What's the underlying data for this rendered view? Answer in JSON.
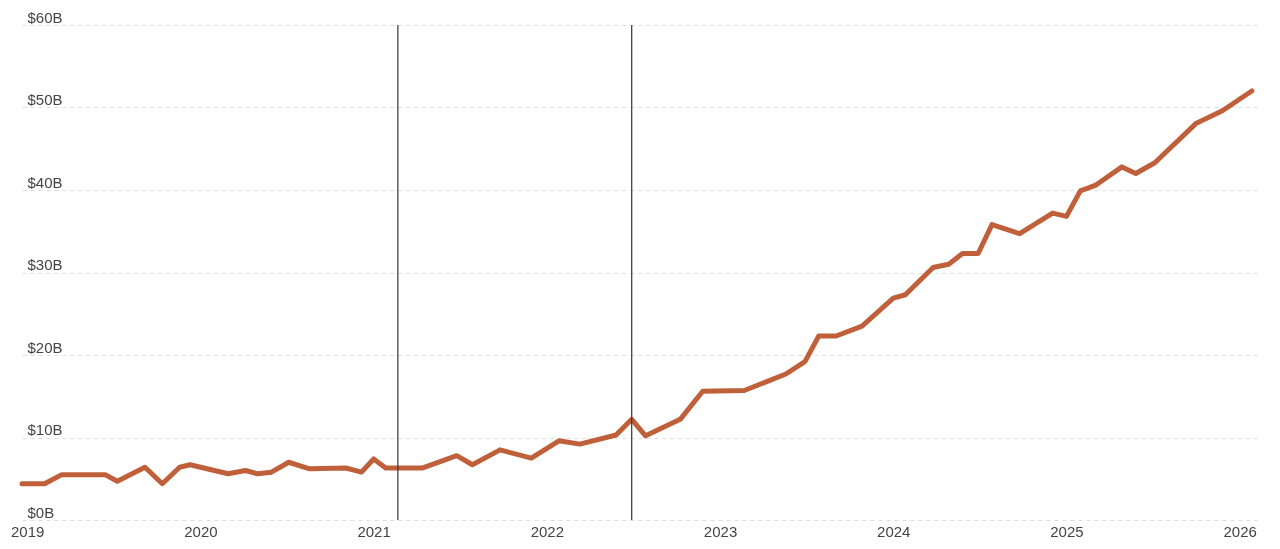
{
  "chart_data": {
    "type": "line",
    "x": [
      2018.97,
      2019.1,
      2019.2,
      2019.45,
      2019.52,
      2019.68,
      2019.78,
      2019.88,
      2019.94,
      2020.16,
      2020.26,
      2020.33,
      2020.41,
      2020.51,
      2020.63,
      2020.84,
      2020.93,
      2021.0,
      2021.07,
      2021.28,
      2021.48,
      2021.57,
      2021.73,
      2021.91,
      2022.07,
      2022.19,
      2022.4,
      2022.49,
      2022.57,
      2022.77,
      2022.9,
      2023.14,
      2023.38,
      2023.49,
      2023.57,
      2023.67,
      2023.82,
      2024.0,
      2024.07,
      2024.23,
      2024.32,
      2024.4,
      2024.49,
      2024.57,
      2024.73,
      2024.92,
      2025.0,
      2025.08,
      2025.17,
      2025.32,
      2025.4,
      2025.51,
      2025.75,
      2025.9,
      2026.07
    ],
    "series": [
      {
        "color": "#c0603a",
        "values": [
          4.4,
          4.4,
          5.5,
          5.5,
          4.7,
          6.4,
          4.4,
          6.4,
          6.7,
          5.6,
          6.0,
          5.6,
          5.8,
          7.0,
          6.2,
          6.3,
          5.8,
          7.4,
          6.3,
          6.3,
          7.8,
          6.7,
          8.5,
          7.5,
          9.6,
          9.2,
          10.3,
          12.2,
          10.2,
          12.2,
          15.6,
          15.7,
          17.7,
          19.2,
          22.3,
          22.3,
          23.5,
          26.9,
          27.3,
          30.6,
          31.0,
          32.3,
          32.3,
          35.8,
          34.7,
          37.2,
          36.8,
          39.9,
          40.6,
          42.8,
          42.0,
          43.3,
          48.1,
          49.6,
          52.0
        ]
      }
    ],
    "xlim": [
      2018.97,
      2026.1
    ],
    "xticks": [
      2019,
      2020,
      2021,
      2022,
      2023,
      2024,
      2025,
      2026
    ],
    "ylim": [
      0,
      60
    ],
    "yticks": [
      {
        "value": 0,
        "label": "$0B"
      },
      {
        "value": 10,
        "label": "$10B"
      },
      {
        "value": 20,
        "label": "$20B"
      },
      {
        "value": 30,
        "label": "$30B"
      },
      {
        "value": 40,
        "label": "$40B"
      },
      {
        "value": 50,
        "label": "$50B"
      },
      {
        "value": 60,
        "label": "$60B"
      }
    ],
    "grid": "y",
    "line_style": "solid",
    "marker": "none",
    "ref_lines": [
      {
        "axis": "x",
        "value": 2021.14,
        "color": "#333333"
      },
      {
        "axis": "x",
        "value": 2022.49,
        "color": "#333333"
      }
    ]
  }
}
